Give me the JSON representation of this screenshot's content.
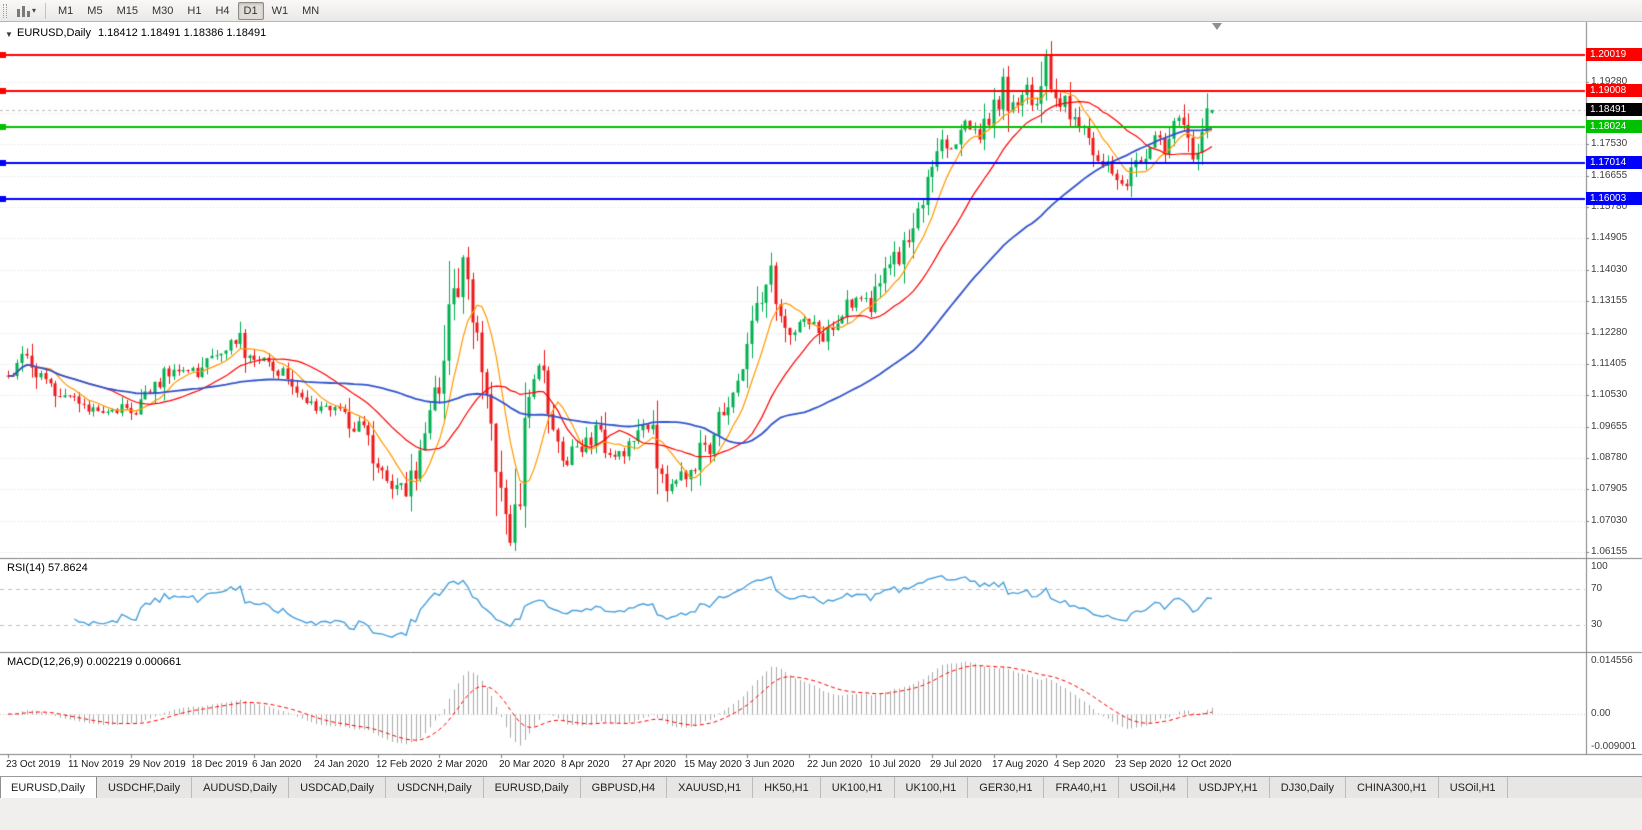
{
  "icons": {
    "one_click_arrow": "▼",
    "period_caret": "▾"
  },
  "toolbar": {
    "periods": [
      {
        "label": "M1",
        "active": false
      },
      {
        "label": "M5",
        "active": false
      },
      {
        "label": "M15",
        "active": false
      },
      {
        "label": "M30",
        "active": false
      },
      {
        "label": "H1",
        "active": false
      },
      {
        "label": "H4",
        "active": false
      },
      {
        "label": "D1",
        "active": true
      },
      {
        "label": "W1",
        "active": false
      },
      {
        "label": "MN",
        "active": false
      }
    ]
  },
  "chart": {
    "symbol_label": "EURUSD,Daily",
    "ohlc_label": "1.18412 1.18491 1.18386 1.18491"
  },
  "chart_data": {
    "type": "candlestick",
    "symbol": "EURUSD",
    "timeframe": "Daily",
    "candles_count": 255,
    "label_interval": 13,
    "date_labels": [
      "23 Oct 2019",
      "11 Nov 2019",
      "29 Nov 2019",
      "18 Dec 2019",
      "6 Jan 2020",
      "24 Jan 2020",
      "12 Feb 2020",
      "2 Mar 2020",
      "20 Mar 2020",
      "8 Apr 2020",
      "27 Apr 2020",
      "15 May 2020",
      "3 Jun 2020",
      "22 Jun 2020",
      "10 Jul 2020",
      "29 Jul 2020",
      "17 Aug 2020",
      "4 Sep 2020",
      "23 Sep 2020",
      "12 Oct 2020"
    ],
    "price_range": {
      "min": 1.0599,
      "max": 1.2086
    },
    "price_scale": [
      "1.19280",
      "1.18405",
      "1.17530",
      "1.16655",
      "1.15780",
      "1.14905",
      "1.14030",
      "1.13155",
      "1.12280",
      "1.11405",
      "1.10530",
      "1.09655",
      "1.08780",
      "1.07905",
      "1.07030",
      "1.06155"
    ],
    "last_candle": {
      "open": 1.18412,
      "high": 1.18491,
      "low": 1.18386,
      "close": 1.18491
    },
    "current_price": {
      "value": 1.18491,
      "label": "1.18491",
      "badge_color": "#000000"
    },
    "horizontal_lines": [
      {
        "price": 1.20019,
        "color": "#ff0000",
        "badge": "1.20019"
      },
      {
        "price": 1.19008,
        "color": "#ff0000",
        "badge": "1.19008"
      },
      {
        "price": 1.18024,
        "color": "#00c000",
        "badge": "1.18024"
      },
      {
        "price": 1.17014,
        "color": "#0000ff",
        "badge": "1.17014"
      },
      {
        "price": 1.16003,
        "color": "#0000ff",
        "badge": "1.16003"
      }
    ],
    "moving_averages": [
      {
        "period": 8,
        "color": "#ff9900"
      },
      {
        "period": 21,
        "color": "#ff0000"
      },
      {
        "period": 55,
        "color": "#3355cc"
      }
    ],
    "colors": {
      "up": "#00b050",
      "down": "#f01818",
      "background": "#ffffff",
      "grid": "#e0e0e0"
    },
    "price_anchors": [
      [
        0,
        1.112
      ],
      [
        4,
        1.1155
      ],
      [
        8,
        1.1095
      ],
      [
        13,
        1.1035
      ],
      [
        17,
        1.1005
      ],
      [
        21,
        1.1015
      ],
      [
        26,
        1.101
      ],
      [
        30,
        1.1075
      ],
      [
        34,
        1.112
      ],
      [
        39,
        1.1115
      ],
      [
        44,
        1.117
      ],
      [
        48,
        1.121
      ],
      [
        52,
        1.116
      ],
      [
        57,
        1.1115
      ],
      [
        61,
        1.106
      ],
      [
        65,
        1.102
      ],
      [
        70,
        1.1
      ],
      [
        74,
        1.096
      ],
      [
        78,
        1.0865
      ],
      [
        82,
        1.08
      ],
      [
        84,
        1.079
      ],
      [
        87,
        1.088
      ],
      [
        91,
        1.106
      ],
      [
        94,
        1.13
      ],
      [
        96,
        1.144
      ],
      [
        98,
        1.128
      ],
      [
        100,
        1.115
      ],
      [
        102,
        1.099
      ],
      [
        104,
        1.079
      ],
      [
        106,
        1.066
      ],
      [
        108,
        1.082
      ],
      [
        110,
        1.103
      ],
      [
        112,
        1.112
      ],
      [
        114,
        1.101
      ],
      [
        117,
        1.086
      ],
      [
        119,
        1.092
      ],
      [
        121,
        1.089
      ],
      [
        124,
        1.096
      ],
      [
        127,
        1.09
      ],
      [
        130,
        1.0865
      ],
      [
        133,
        1.095
      ],
      [
        135,
        1.0975
      ],
      [
        137,
        1.084
      ],
      [
        140,
        1.08
      ],
      [
        143,
        1.0825
      ],
      [
        147,
        1.0905
      ],
      [
        151,
        1.099
      ],
      [
        154,
        1.111
      ],
      [
        156,
        1.12
      ],
      [
        159,
        1.133
      ],
      [
        161,
        1.14
      ],
      [
        163,
        1.13
      ],
      [
        165,
        1.124
      ],
      [
        169,
        1.1255
      ],
      [
        172,
        1.1215
      ],
      [
        175,
        1.126
      ],
      [
        178,
        1.131
      ],
      [
        180,
        1.133
      ],
      [
        182,
        1.129
      ],
      [
        185,
        1.139
      ],
      [
        188,
        1.144
      ],
      [
        191,
        1.152
      ],
      [
        193,
        1.162
      ],
      [
        195,
        1.173
      ],
      [
        197,
        1.178
      ],
      [
        199,
        1.174
      ],
      [
        201,
        1.177
      ],
      [
        203,
        1.181
      ],
      [
        205,
        1.178
      ],
      [
        208,
        1.185
      ],
      [
        210,
        1.193
      ],
      [
        211,
        1.187
      ],
      [
        213,
        1.185
      ],
      [
        215,
        1.191
      ],
      [
        217,
        1.187
      ],
      [
        218,
        1.196
      ],
      [
        219,
        1.2
      ],
      [
        220,
        1.192
      ],
      [
        221,
        1.1845
      ],
      [
        223,
        1.187
      ],
      [
        225,
        1.183
      ],
      [
        227,
        1.179
      ],
      [
        229,
        1.175
      ],
      [
        231,
        1.17
      ],
      [
        233,
        1.1665
      ],
      [
        236,
        1.1625
      ],
      [
        238,
        1.168
      ],
      [
        240,
        1.174
      ],
      [
        242,
        1.1765
      ],
      [
        244,
        1.174
      ],
      [
        246,
        1.1785
      ],
      [
        247,
        1.181
      ],
      [
        249,
        1.1745
      ],
      [
        250,
        1.172
      ],
      [
        251,
        1.176
      ],
      [
        252,
        1.182
      ],
      [
        254,
        1.18491
      ]
    ],
    "indicators": {
      "rsi": {
        "label": "RSI(14) 57.8624",
        "period": 14,
        "value": 57.8624,
        "levels": [
          70,
          30
        ],
        "scale": [
          {
            "label": "100",
            "value": 100
          },
          {
            "label": "70",
            "value": 70
          },
          {
            "label": "30",
            "value": 30
          }
        ],
        "color": "#4aa0dc"
      },
      "macd": {
        "label": "MACD(12,26,9) 0.002219 0.000661",
        "fast": 12,
        "slow": 26,
        "signal": 9,
        "value": 0.002219,
        "signal_value": 0.000661,
        "range": {
          "min": -0.009001,
          "max": 0.014556
        },
        "scale": [
          {
            "label": "0.014556",
            "value": 0.014556
          },
          {
            "label": "0.00",
            "value": 0
          },
          {
            "label": "-0.009001",
            "value": -0.009001
          }
        ],
        "histogram_color": "#ababab",
        "signal_color": "#ff0000"
      }
    }
  },
  "tabs": {
    "items": [
      {
        "label": "EURUSD,Daily",
        "active": true
      },
      {
        "label": "USDCHF,Daily",
        "active": false
      },
      {
        "label": "AUDUSD,Daily",
        "active": false
      },
      {
        "label": "USDCAD,Daily",
        "active": false
      },
      {
        "label": "USDCNH,Daily",
        "active": false
      },
      {
        "label": "EURUSD,Daily",
        "active": false
      },
      {
        "label": "GBPUSD,H4",
        "active": false
      },
      {
        "label": "XAUUSD,H1",
        "active": false
      },
      {
        "label": "HK50,H1",
        "active": false
      },
      {
        "label": "UK100,H1",
        "active": false
      },
      {
        "label": "UK100,H1",
        "active": false
      },
      {
        "label": "GER30,H1",
        "active": false
      },
      {
        "label": "FRA40,H1",
        "active": false
      },
      {
        "label": "USOil,H4",
        "active": false
      },
      {
        "label": "USDJPY,H1",
        "active": false
      },
      {
        "label": "DJ30,Daily",
        "active": false
      },
      {
        "label": "CHINA300,H1",
        "active": false
      },
      {
        "label": "USOil,H1",
        "active": false
      }
    ]
  }
}
